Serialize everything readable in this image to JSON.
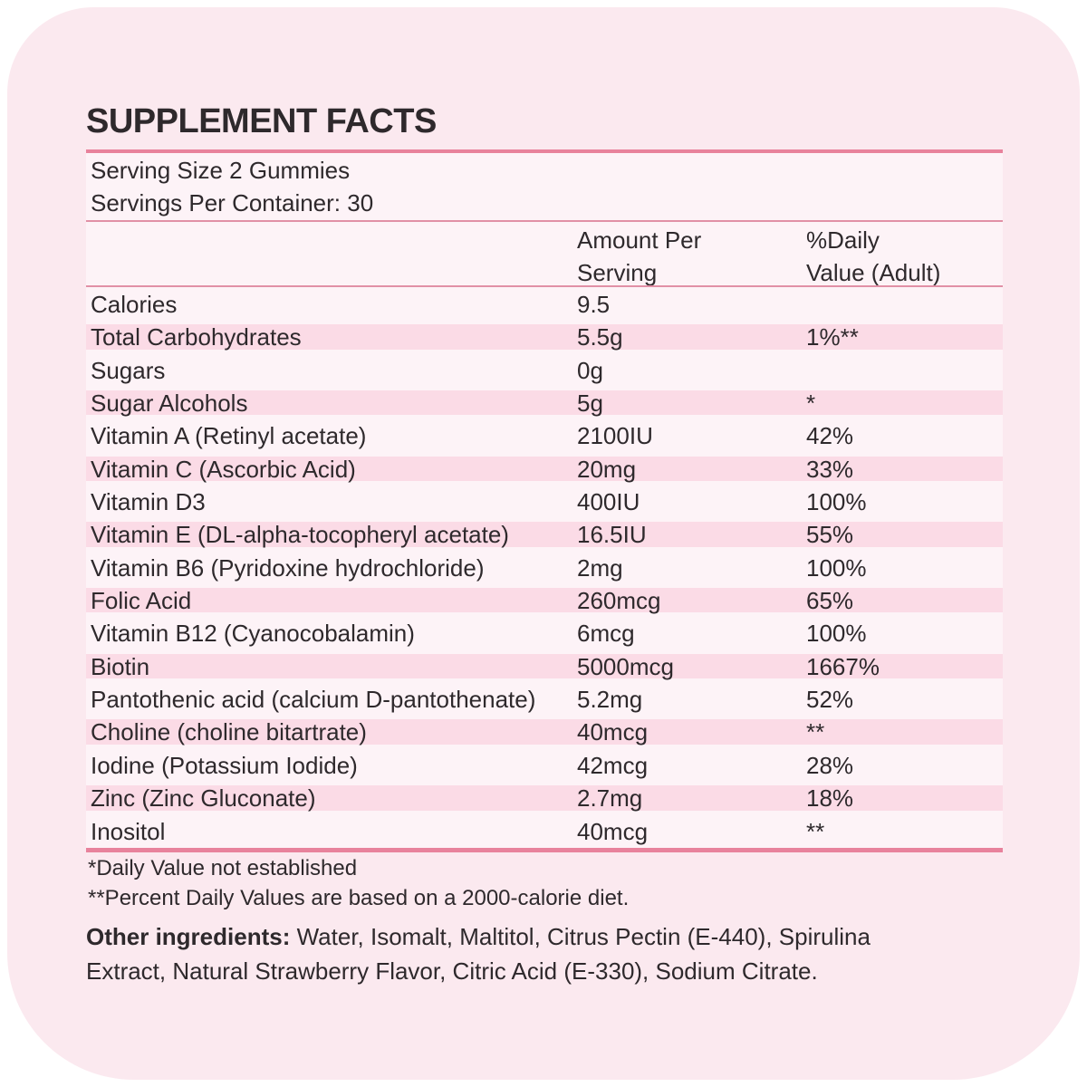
{
  "title": "SUPPLEMENT FACTS",
  "serving": {
    "size": "Serving Size 2 Gummies",
    "per_container": "Servings Per Container: 30"
  },
  "columns": {
    "amount_line1": "Amount Per",
    "amount_line2": "Serving",
    "dv_line1": "%Daily",
    "dv_line2": "Value (Adult)"
  },
  "rows": [
    {
      "name": "Calories",
      "amount": "9.5",
      "dv": ""
    },
    {
      "name": "Total Carbohydrates",
      "amount": "5.5g",
      "dv": "1%**"
    },
    {
      "name": "Sugars",
      "amount": "0g",
      "dv": ""
    },
    {
      "name": "Sugar Alcohols",
      "amount": "5g",
      "dv": "*"
    },
    {
      "name": "Vitamin A (Retinyl acetate)",
      "amount": "2100IU",
      "dv": "42%"
    },
    {
      "name": "Vitamin C (Ascorbic Acid)",
      "amount": "20mg",
      "dv": "33%"
    },
    {
      "name": "Vitamin D3",
      "amount": "400IU",
      "dv": "100%"
    },
    {
      "name": "Vitamin E (DL-alpha-tocopheryl acetate)",
      "amount": "16.5IU",
      "dv": "55%"
    },
    {
      "name": "Vitamin B6 (Pyridoxine hydrochloride)",
      "amount": "2mg",
      "dv": "100%"
    },
    {
      "name": "Folic Acid",
      "amount": "260mcg",
      "dv": "65%"
    },
    {
      "name": "Vitamin B12 (Cyanocobalamin)",
      "amount": "6mcg",
      "dv": "100%"
    },
    {
      "name": "Biotin",
      "amount": "5000mcg",
      "dv": "1667%"
    },
    {
      "name": "Pantothenic acid (calcium D-pantothenate)",
      "amount": "5.2mg",
      "dv": "52%"
    },
    {
      "name": "Choline (choline bitartrate)",
      "amount": "40mcg",
      "dv": "**"
    },
    {
      "name": "Iodine (Potassium Iodide)",
      "amount": "42mcg",
      "dv": "28%"
    },
    {
      "name": "Zinc (Zinc Gluconate)",
      "amount": "2.7mg",
      "dv": "18%"
    },
    {
      "name": "Inositol",
      "amount": "40mcg",
      "dv": "**"
    }
  ],
  "footnotes": [
    "*Daily Value not established",
    "**Percent Daily Values are based on a 2000-calorie diet."
  ],
  "other_ingredients": {
    "label": "Other ingredients:",
    "line1": "Water, Isomalt, Maltitol, Citrus Pectin (E-440), Spirulina",
    "line2": "Extract, Natural Strawberry Flavor, Citric Acid (E-330), Sodium Citrate."
  },
  "colors": {
    "panel_bg": "#fbe9ef",
    "table_bg": "#fdf3f7",
    "stripe": "#fbdbe6",
    "rule_thick": "#e8829c",
    "rule_thin": "#e190a6",
    "text": "#2e292c"
  }
}
